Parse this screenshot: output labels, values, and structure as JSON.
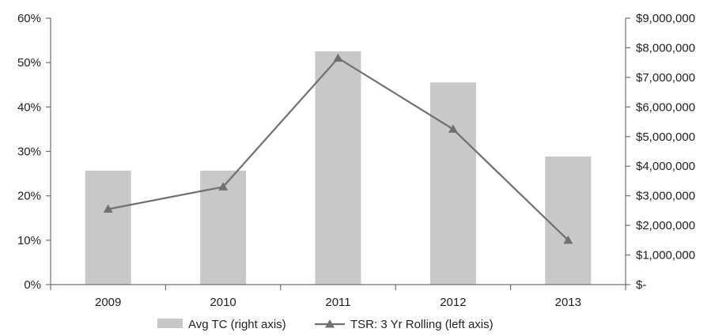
{
  "chart_data": {
    "type": "bar",
    "categories": [
      "2009",
      "2010",
      "2011",
      "2012",
      "2013"
    ],
    "series": [
      {
        "name": "Avg TC (right axis)",
        "type": "bar",
        "axis": "right",
        "values": [
          3850000,
          3850000,
          7880000,
          6830000,
          4330000
        ]
      },
      {
        "name": "TSR: 3 Yr Rolling (left axis)",
        "type": "line",
        "axis": "left",
        "marker": "triangle",
        "values": [
          0.17,
          0.22,
          0.51,
          0.35,
          0.1
        ]
      }
    ],
    "left_axis": {
      "ylim": [
        0,
        0.6
      ],
      "ticks": [
        0,
        0.1,
        0.2,
        0.3,
        0.4,
        0.5,
        0.6
      ],
      "tick_labels": [
        "0%",
        "10%",
        "20%",
        "30%",
        "40%",
        "50%",
        "60%"
      ]
    },
    "right_axis": {
      "ylim": [
        0,
        9000000
      ],
      "ticks": [
        0,
        1000000,
        2000000,
        3000000,
        4000000,
        5000000,
        6000000,
        7000000,
        8000000,
        9000000
      ],
      "tick_labels": [
        "$-",
        "$1,000,000",
        "$2,000,000",
        "$3,000,000",
        "$4,000,000",
        "$5,000,000",
        "$6,000,000",
        "$7,000,000",
        "$8,000,000",
        "$9,000,000"
      ]
    },
    "grid": false,
    "legend": "bottom",
    "colors": {
      "bar": "#c8c8c8",
      "line": "#707070",
      "axis": "#707070",
      "text": "#222222"
    }
  }
}
